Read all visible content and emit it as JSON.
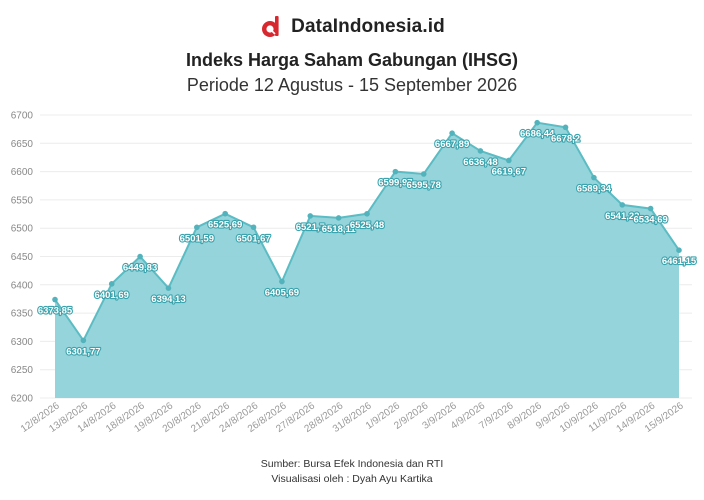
{
  "brand": {
    "name": "DataIndonesia.id",
    "logo_icon": "dataindonesia-logo-icon",
    "logo_color": "#d7282f"
  },
  "footer": {
    "source": "Sumber: Bursa Efek Indonesia dan RTI",
    "credit": "Visualisasi oleh : Dyah Ayu Kartika"
  },
  "chart_data": {
    "type": "area",
    "title": "Indeks Harga Saham Gabungan (IHSG)",
    "subtitle": "Periode 12 Agustus - 15 September 2026",
    "xlabel": "",
    "ylabel": "",
    "ylim": [
      6200,
      6700
    ],
    "yticks": [
      6200,
      6250,
      6300,
      6350,
      6400,
      6450,
      6500,
      6550,
      6600,
      6650,
      6700
    ],
    "grid": true,
    "legend": "none",
    "colors": {
      "fill": "#8fd2d8",
      "line": "#5bbcc4",
      "point": "#52b3bc",
      "label_outline": "#3aa3ad"
    },
    "x_ticks": [
      "12/8/2026",
      "13/8/2026",
      "14/8/2026",
      "18/8/2026",
      "19/8/2026",
      "20/8/2026",
      "21/8/2026",
      "24/8/2026",
      "26/8/2026",
      "27/8/2026",
      "28/8/2026",
      "31/8/2026",
      "1/9/2026",
      "2/9/2026",
      "3/9/2026",
      "4/9/2026",
      "7/9/2026",
      "8/9/2026",
      "9/9/2026",
      "10/9/2026",
      "11/9/2026",
      "14/9/2026",
      "15/9/2026"
    ],
    "points": [
      {
        "x": 0.0,
        "y": 6373.85,
        "label": "6373,85"
      },
      {
        "x": 1.0,
        "y": 6301.77,
        "label": "6301,77"
      },
      {
        "x": 2.0,
        "y": 6401.69,
        "label": "6401,69"
      },
      {
        "x": 3.0,
        "y": 6449.83,
        "label": "6449,83"
      },
      {
        "x": 4.0,
        "y": 6394.13,
        "label": "6394,13"
      },
      {
        "x": 5.0,
        "y": 6501.59,
        "label": "6501,59"
      },
      {
        "x": 6.0,
        "y": 6525.69,
        "label": "6525,69"
      },
      {
        "x": 7.0,
        "y": 6501.67,
        "label": "6501,67"
      },
      {
        "x": 8.0,
        "y": 6405.69,
        "label": "6405,69"
      },
      {
        "x": 9.0,
        "y": 6521.7,
        "label": "6521,7"
      },
      {
        "x": 10.0,
        "y": 6518.11,
        "label": "6518,11"
      },
      {
        "x": 11.0,
        "y": 6525.48,
        "label": "6525,48"
      },
      {
        "x": 12.0,
        "y": 6599.97,
        "label": "6599,97"
      },
      {
        "x": 13.0,
        "y": 6595.78,
        "label": "6595,78"
      },
      {
        "x": 14.0,
        "y": 6667.89,
        "label": "6667,89"
      },
      {
        "x": 15.0,
        "y": 6636.48,
        "label": "6636,48"
      },
      {
        "x": 16.0,
        "y": 6619.67,
        "label": "6619,67"
      },
      {
        "x": 17.0,
        "y": 6686.44,
        "label": "6686,44"
      },
      {
        "x": 18.0,
        "y": 6678.2,
        "label": "6678,2"
      },
      {
        "x": 19.0,
        "y": 6589.34,
        "label": "6589,34"
      },
      {
        "x": 20.0,
        "y": 6541.22,
        "label": "6541,22"
      },
      {
        "x": 21.0,
        "y": 6534.69,
        "label": "6534,69"
      },
      {
        "x": 22.0,
        "y": 6461.15,
        "label": "6461,15"
      }
    ]
  }
}
